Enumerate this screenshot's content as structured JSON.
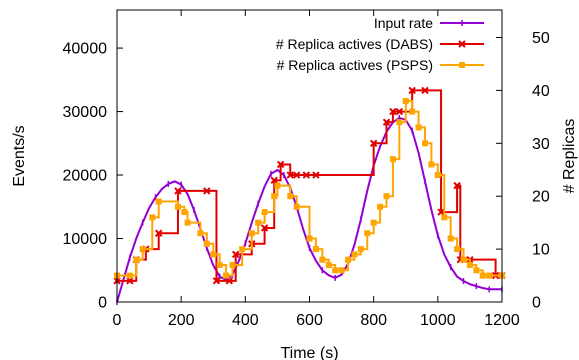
{
  "chart_data": {
    "type": "line",
    "title": "",
    "xlabel": "Time (s)",
    "ylabel_left": "Events/s",
    "ylabel_right": "# Replicas",
    "xlim": [
      0,
      1200
    ],
    "ylim_left": [
      0,
      46000
    ],
    "ylim_right": [
      0,
      55.2
    ],
    "xticks": [
      0,
      200,
      400,
      600,
      800,
      1000,
      1200
    ],
    "yticks_left": [
      0,
      10000,
      20000,
      30000,
      40000
    ],
    "yticks_right": [
      0,
      10,
      20,
      30,
      40,
      50
    ],
    "grid": false,
    "legend_position": "top-right",
    "colors": {
      "input_rate": "#9400D3",
      "dabs": "#E00000",
      "psps": "#FFA500",
      "axis": "#000000"
    },
    "series": [
      {
        "name": "Input rate",
        "axis": "left",
        "key": "input_rate",
        "step": false,
        "marker": "tick",
        "x": [
          0,
          20,
          40,
          60,
          80,
          100,
          120,
          140,
          160,
          180,
          200,
          220,
          240,
          260,
          280,
          300,
          320,
          340,
          360,
          380,
          400,
          420,
          440,
          460,
          480,
          500,
          520,
          540,
          560,
          580,
          600,
          620,
          640,
          660,
          680,
          700,
          720,
          740,
          760,
          780,
          800,
          820,
          840,
          860,
          880,
          900,
          920,
          940,
          960,
          980,
          1000,
          1020,
          1040,
          1060,
          1080,
          1100,
          1120,
          1140,
          1160,
          1180,
          1200
        ],
        "y": [
          0,
          3500,
          7000,
          10000,
          12500,
          14800,
          16500,
          17800,
          18600,
          19000,
          18500,
          17000,
          14500,
          11500,
          8500,
          5800,
          4000,
          3500,
          4300,
          6500,
          9200,
          12500,
          15500,
          18200,
          20200,
          20800,
          20000,
          18000,
          15000,
          11500,
          8500,
          6500,
          5000,
          4200,
          3800,
          4300,
          6000,
          9000,
          13000,
          17500,
          21500,
          24500,
          26800,
          28300,
          29000,
          28700,
          27000,
          23500,
          19000,
          14500,
          10500,
          7500,
          5500,
          4000,
          3300,
          2800,
          2500,
          2200,
          2000,
          2000,
          2000
        ]
      },
      {
        "name": "# Replica actives (DABS)",
        "axis": "right",
        "key": "dabs",
        "step": true,
        "marker": "cross",
        "x": [
          0,
          40,
          60,
          90,
          130,
          190,
          280,
          310,
          350,
          370,
          420,
          460,
          490,
          510,
          540,
          560,
          590,
          620,
          800,
          840,
          860,
          880,
          920,
          960,
          1010,
          1060,
          1070,
          1100,
          1180,
          1200
        ],
        "y": [
          4,
          4,
          8,
          10,
          13,
          21,
          21,
          4,
          4,
          9,
          11,
          14,
          23,
          26,
          24,
          24,
          24,
          24,
          30,
          34,
          36,
          36,
          40,
          40,
          17,
          22,
          8,
          8,
          5,
          5
        ]
      },
      {
        "name": "# Replica actives (PSPS)",
        "axis": "right",
        "key": "psps",
        "step": true,
        "marker": "square",
        "x": [
          0,
          40,
          60,
          80,
          110,
          130,
          190,
          210,
          220,
          260,
          280,
          300,
          320,
          340,
          360,
          390,
          420,
          440,
          460,
          490,
          500,
          540,
          560,
          600,
          620,
          640,
          660,
          680,
          700,
          720,
          740,
          760,
          780,
          800,
          820,
          840,
          860,
          880,
          900,
          920,
          940,
          960,
          980,
          1000,
          1020,
          1040,
          1060,
          1080,
          1100,
          1120,
          1140,
          1160,
          1200
        ],
        "y": [
          5,
          5,
          8,
          10,
          16,
          19,
          18,
          17,
          15,
          13,
          11,
          9,
          7,
          5,
          7,
          10,
          13,
          15,
          17,
          20,
          22,
          20,
          18,
          12,
          10,
          8,
          7,
          6,
          6,
          8,
          9,
          10,
          13,
          15,
          18,
          20,
          27,
          34,
          38,
          36,
          33,
          30,
          26,
          24,
          16,
          12,
          10,
          8,
          7,
          6,
          5,
          5,
          5
        ]
      }
    ]
  }
}
